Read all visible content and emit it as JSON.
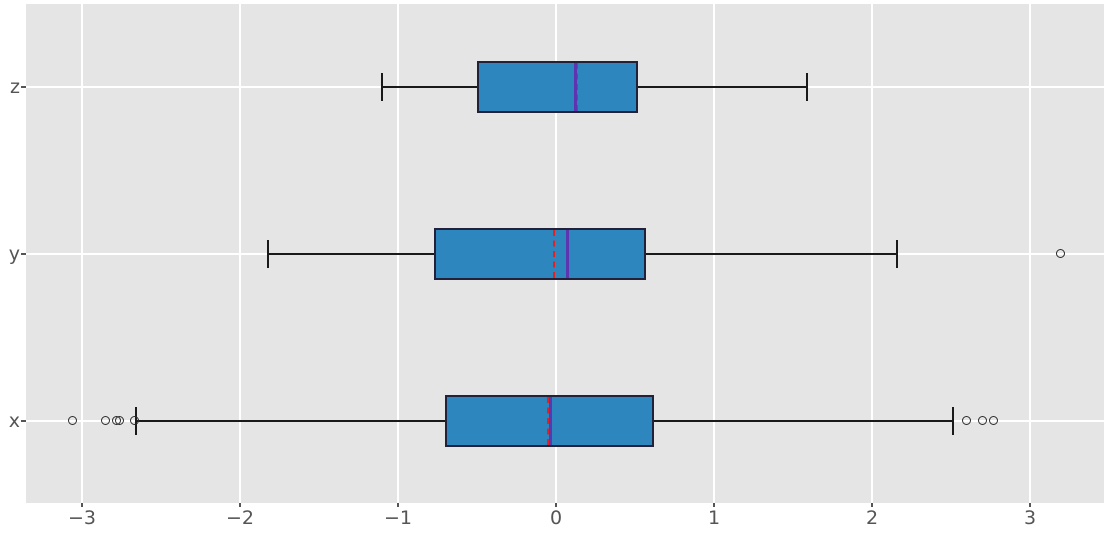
{
  "chart_data": {
    "type": "boxplot",
    "orientation": "horizontal",
    "title": "",
    "legend": null,
    "categories": [
      "z",
      "y",
      "x"
    ],
    "x_axis": {
      "ticks": [
        -3,
        -2,
        -1,
        0,
        1,
        2,
        3
      ],
      "tick_labels": [
        "−3",
        "−2",
        "−1",
        "0",
        "1",
        "2",
        "3"
      ],
      "range": [
        -3.37,
        3.47
      ],
      "grid": true
    },
    "rows": [
      {
        "label": "z",
        "whisker_low": -1.1,
        "q1": -0.5,
        "median": 0.12,
        "mean": 0.13,
        "q3": 0.52,
        "whisker_high": 1.59,
        "outliers": []
      },
      {
        "label": "y",
        "whisker_low": -1.82,
        "q1": -0.77,
        "median": 0.07,
        "mean": -0.01,
        "q3": 0.57,
        "whisker_high": 2.16,
        "outliers": [
          3.19
        ]
      },
      {
        "label": "x",
        "whisker_low": -2.66,
        "q1": -0.7,
        "median": -0.04,
        "mean": -0.05,
        "q3": 0.62,
        "whisker_high": 2.51,
        "outliers": [
          -3.06,
          -2.85,
          -2.78,
          -2.76,
          -2.67,
          2.6,
          2.7,
          2.77
        ]
      }
    ],
    "style": {
      "box_fill": "#2e86bf",
      "box_edge": "#21213a",
      "median_color": "#5e35b1",
      "mean_color": "#e62020",
      "mean_linestyle": "dashed",
      "whisker_color": "#1a1a1a",
      "outlier_edge": "#2b2b2b",
      "panel_bg": "#e5e5e5",
      "figure_bg": "#ffffff",
      "grid_color": "#ffffff",
      "tick_label_color": "#555555"
    }
  }
}
